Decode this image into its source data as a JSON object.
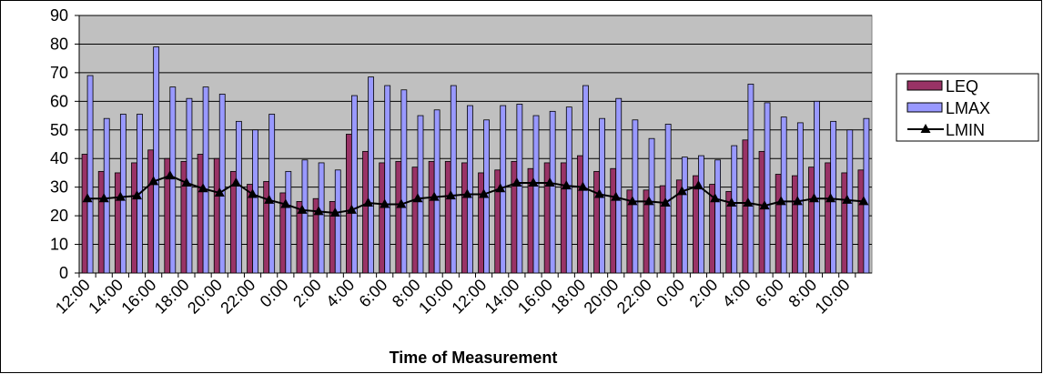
{
  "chart_data": {
    "type": "bar",
    "x_label": "Time of Measurement",
    "categories": [
      "12:00",
      null,
      "14:00",
      null,
      "16:00",
      null,
      "18:00",
      null,
      "20:00",
      null,
      "22:00",
      null,
      "0:00",
      null,
      "2:00",
      null,
      "4:00",
      null,
      "6:00",
      null,
      "8:00",
      null,
      "10:00",
      null,
      "12:00",
      null,
      "14:00",
      null,
      "16:00",
      null,
      "18:00",
      null,
      "20:00",
      null,
      "22:00",
      null,
      "0:00",
      null,
      "2:00",
      null,
      "4:00",
      null,
      "6:00",
      null,
      "8:00",
      null,
      "10:00",
      null
    ],
    "series": [
      {
        "name": "LEQ",
        "type": "bar",
        "color": "#993366",
        "values": [
          41.5,
          35.5,
          35,
          38.5,
          43,
          40,
          39,
          41.5,
          40,
          35.5,
          31,
          32,
          28,
          25,
          26,
          25,
          48.5,
          42.5,
          38.5,
          39,
          37,
          39,
          39,
          38.5,
          35,
          36,
          39,
          36.5,
          38.5,
          38.5,
          41,
          35.5,
          36.5,
          29,
          29,
          30.5,
          32.5,
          34,
          31,
          28.5,
          46.5,
          42.5,
          34.5,
          34,
          37,
          38.5,
          35,
          36
        ]
      },
      {
        "name": "LMAX",
        "type": "bar",
        "color": "#9999ff",
        "values": [
          69,
          54,
          55.5,
          55.5,
          79,
          65,
          61,
          65,
          62.5,
          53,
          50,
          55.5,
          35.5,
          39.5,
          38.5,
          36,
          62,
          68.5,
          65.5,
          64,
          55,
          57,
          65.5,
          58.5,
          53.5,
          58.5,
          59,
          55,
          56.5,
          58,
          65.5,
          54,
          61,
          53.5,
          47,
          52,
          40.5,
          41,
          39.5,
          44.5,
          66,
          59.5,
          54.5,
          52.5,
          60,
          53,
          50,
          54
        ]
      },
      {
        "name": "LMIN",
        "type": "line",
        "color": "#000000",
        "values": [
          26,
          26,
          26.5,
          27,
          32,
          34,
          31.5,
          29.5,
          28,
          31.5,
          27.5,
          25.5,
          24,
          22,
          21.5,
          21,
          22,
          24.5,
          24,
          24,
          26,
          26.5,
          27,
          27.5,
          27.5,
          29.5,
          31.5,
          31.5,
          31.5,
          30.5,
          30,
          27.5,
          26.5,
          25,
          25,
          24.5,
          28.5,
          30.5,
          26,
          24.5,
          24.5,
          23.5,
          25,
          25,
          26,
          26,
          25.5,
          25
        ]
      }
    ],
    "ylim": [
      0,
      90
    ],
    "yticks": [
      0,
      10,
      20,
      30,
      40,
      50,
      60,
      70,
      80,
      90
    ],
    "grid": true,
    "plot_background": "#c0c0c0",
    "legend": "right"
  }
}
